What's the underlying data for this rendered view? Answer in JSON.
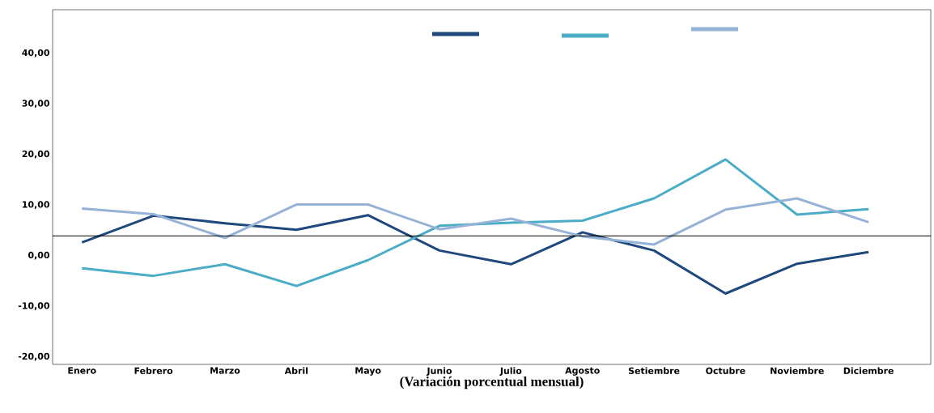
{
  "chart_data": {
    "type": "line",
    "xlabel": "(Variación porcentual mensual)",
    "categories": [
      "Enero",
      "Febrero",
      "Marzo",
      "Abril",
      "Mayo",
      "Junio",
      "Julio",
      "Agosto",
      "Setiembre",
      "Octubre",
      "Noviembre",
      "Diciembre"
    ],
    "series": [
      {
        "color": "#1f497d",
        "values": [
          2.6,
          7.9,
          6.4,
          5.1,
          8.0,
          1.0,
          -1.7,
          4.6,
          1.0,
          -7.5,
          -1.6,
          0.7
        ]
      },
      {
        "color": "#4bacc6",
        "values": [
          -2.5,
          -4.0,
          -1.7,
          -6.0,
          -0.9,
          5.9,
          6.5,
          6.9,
          11.3,
          19.0,
          8.1,
          9.2
        ]
      },
      {
        "color": "#95b3d7",
        "values": [
          9.3,
          8.2,
          3.5,
          10.1,
          10.1,
          5.2,
          7.3,
          3.8,
          2.2,
          9.1,
          11.3,
          6.6
        ]
      }
    ],
    "ylim": [
      -21.5,
      48.6
    ],
    "yticks": [
      {
        "value": -20,
        "label": "-20,00"
      },
      {
        "value": -10,
        "label": "-10,00"
      },
      {
        "value": 0,
        "label": "0,00"
      },
      {
        "value": 10,
        "label": "10,00"
      },
      {
        "value": 20,
        "label": "20,00"
      },
      {
        "value": 30,
        "label": "30,00"
      },
      {
        "value": 40,
        "label": "40,00"
      }
    ],
    "ref_lines": [
      {
        "axis": "y",
        "value": 3.9,
        "color": "#000000"
      }
    ],
    "grid": false,
    "marker": "none",
    "line_style": "solid"
  }
}
